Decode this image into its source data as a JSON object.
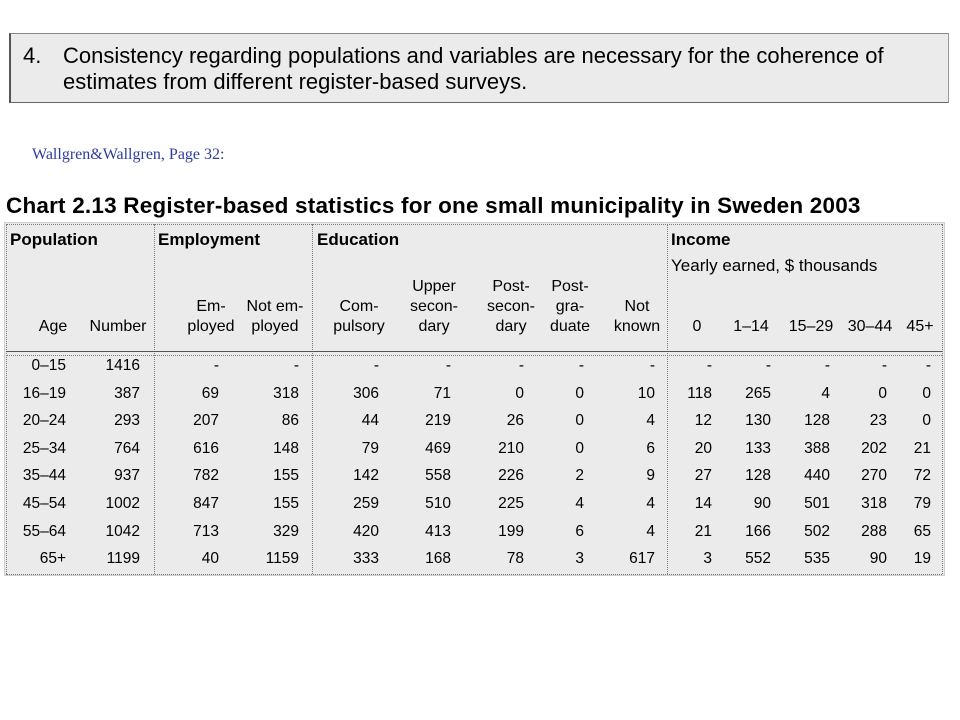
{
  "point": {
    "number": "4.",
    "text": "Consistency regarding populations and variables are necessary for the coherence of estimates from different register-based surveys."
  },
  "source": "Wallgren&Wallgren,  Page 32:",
  "chart_title": "Chart 2.13  Register-based statistics for one small municipality in Sweden 2003",
  "table": {
    "groups": [
      "Population",
      "Employment",
      "Education",
      "Income"
    ],
    "income_subtitle": "Yearly earned, $ thousands",
    "columns": [
      "Age",
      "Number",
      "Em-\nployed",
      "Not em-\nployed",
      "Com-\npulsory",
      "Upper\nsecon-\ndary",
      "Post-\nsecon-\ndary",
      "Post-\ngra-\nduate",
      "Not\nknown",
      "0",
      "1–14",
      "15–29",
      "30–44",
      "45+"
    ],
    "rows": [
      [
        "0–15",
        "1416",
        "-",
        "-",
        "-",
        "-",
        "-",
        "-",
        "-",
        "-",
        "-",
        "-",
        "-",
        "-"
      ],
      [
        "16–19",
        "387",
        "69",
        "318",
        "306",
        "71",
        "0",
        "0",
        "10",
        "118",
        "265",
        "4",
        "0",
        "0"
      ],
      [
        "20–24",
        "293",
        "207",
        "86",
        "44",
        "219",
        "26",
        "0",
        "4",
        "12",
        "130",
        "128",
        "23",
        "0"
      ],
      [
        "25–34",
        "764",
        "616",
        "148",
        "79",
        "469",
        "210",
        "0",
        "6",
        "20",
        "133",
        "388",
        "202",
        "21"
      ],
      [
        "35–44",
        "937",
        "782",
        "155",
        "142",
        "558",
        "226",
        "2",
        "9",
        "27",
        "128",
        "440",
        "270",
        "72"
      ],
      [
        "45–54",
        "1002",
        "847",
        "155",
        "259",
        "510",
        "225",
        "4",
        "4",
        "14",
        "90",
        "501",
        "318",
        "79"
      ],
      [
        "55–64",
        "1042",
        "713",
        "329",
        "420",
        "413",
        "199",
        "6",
        "4",
        "21",
        "166",
        "502",
        "288",
        "65"
      ],
      [
        "65+",
        "1199",
        "40",
        "1159",
        "333",
        "168",
        "78",
        "3",
        "617",
        "3",
        "552",
        "535",
        "90",
        "19"
      ]
    ]
  }
}
